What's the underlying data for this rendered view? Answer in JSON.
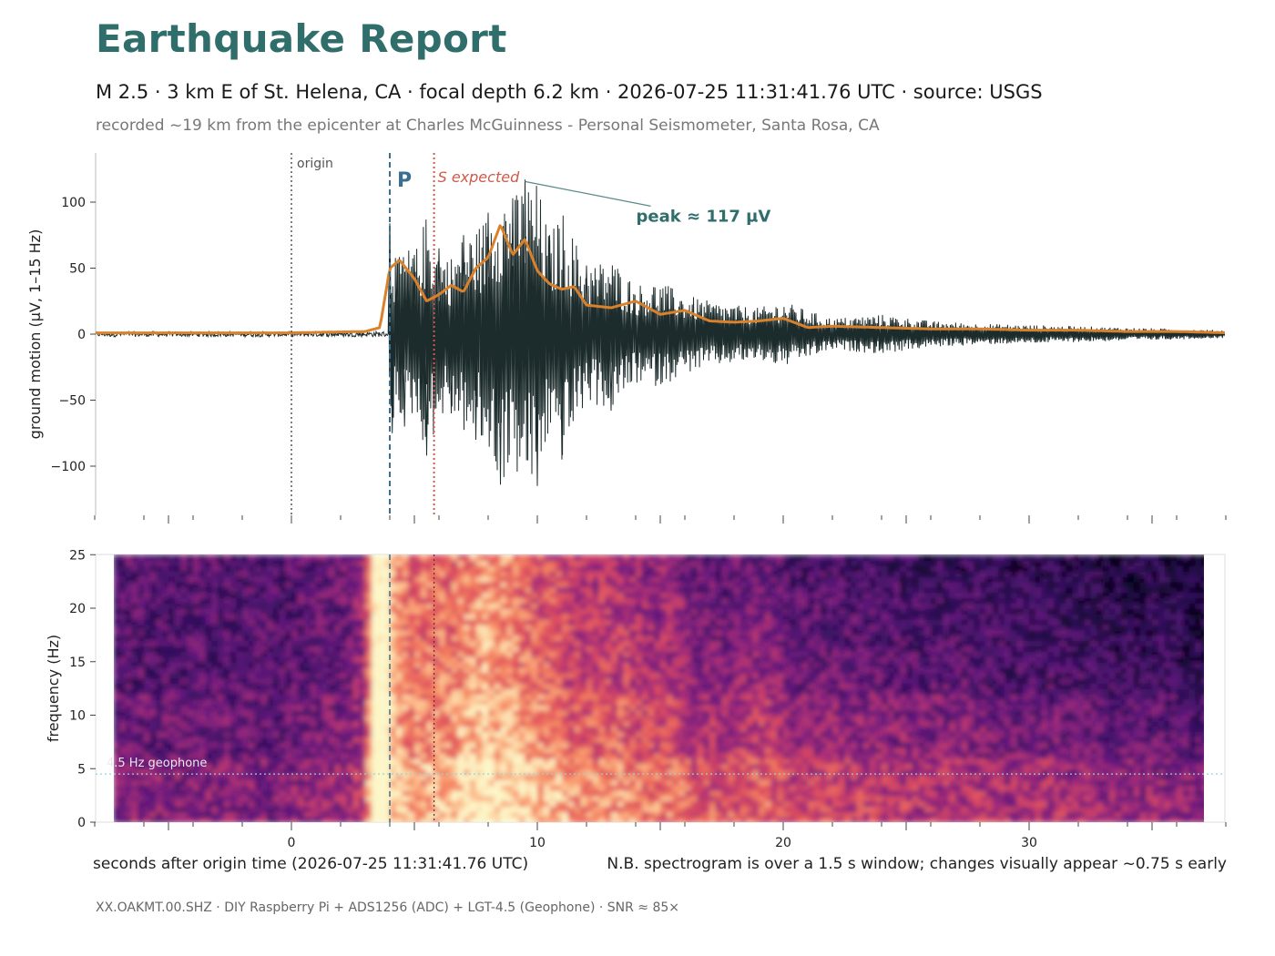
{
  "header": {
    "title": "Earthquake Report",
    "subtitle": "M 2.5  ·  3 km E of St. Helena, CA  ·  focal depth 6.2 km  ·  2026-07-25 11:31:41.76 UTC  ·  source: USGS",
    "recorded": "recorded ~19 km from the epicenter at Charles McGuinness - Personal Seismometer, Santa Rosa, CA"
  },
  "footer": {
    "text": "XX.OAKMT.00.SHZ  ·  DIY Raspberry Pi + ADS1256 (ADC) + LGT-4.5 (Geophone)  ·  SNR ≈ 85×"
  },
  "colors": {
    "title": "#2f6e6a",
    "trace": "#1c2b2b",
    "envelope": "#d9822b",
    "p_line": "#3a6f8f",
    "s_line": "#d05a4a",
    "origin_line": "#555555",
    "peak_label": "#2f6e6a",
    "geophone_line": "#8fd3e0"
  },
  "chart_data": [
    {
      "type": "line",
      "xlabel": "seconds after origin time  (2026-07-25 11:31:41.76 UTC)",
      "ylabel": "ground motion  (µV, 1–15 Hz)",
      "xlim": [
        -8,
        38
      ],
      "ylim": [
        -138,
        138
      ],
      "x_ticks": [
        0,
        10,
        20,
        30
      ],
      "y_ticks": [
        -100,
        -50,
        0,
        50,
        100
      ],
      "grid": false,
      "markers": [
        {
          "name": "origin",
          "label": "origin",
          "x": 0
        },
        {
          "name": "p-arrival",
          "label": "P",
          "x": 4.0
        },
        {
          "name": "s-expected",
          "label": "S expected",
          "x": 5.8
        }
      ],
      "peak": {
        "label": "peak ≈ 117 µV",
        "x": 9.5,
        "y": 117
      },
      "series": [
        {
          "role": "trace",
          "x": [
            -8,
            -7,
            -6,
            -5,
            -4,
            -3,
            -2,
            -1,
            0,
            1,
            2,
            3,
            3.5,
            4.0,
            4.1,
            4.3,
            4.6,
            5.0,
            5.5,
            6.0,
            6.5,
            7.0,
            7.5,
            8.0,
            8.5,
            9.0,
            9.5,
            10.0,
            10.5,
            11.0,
            12.0,
            13.0,
            14.0,
            15.0,
            16.0,
            17.0,
            18.0,
            19.0,
            20.0,
            21.0,
            22.0,
            24.0,
            26.0,
            28.0,
            30.0,
            32.0,
            34.0,
            36.0,
            38.0
          ],
          "y": [
            1,
            -1,
            1,
            -1,
            1,
            -2,
            1,
            -1,
            1,
            -1,
            2,
            -2,
            2,
            84,
            -75,
            55,
            -70,
            60,
            -92,
            65,
            -60,
            75,
            -80,
            92,
            -114,
            103,
            117,
            -115,
            75,
            -95,
            52,
            -58,
            38,
            -40,
            30,
            -25,
            22,
            -20,
            25,
            -18,
            12,
            -15,
            10,
            -8,
            7,
            -6,
            5,
            -4,
            3
          ]
        },
        {
          "role": "envelope",
          "x": [
            -8,
            -4,
            0,
            3,
            3.6,
            4.0,
            4.4,
            5.0,
            5.5,
            6.0,
            6.5,
            7.0,
            7.5,
            8.0,
            8.5,
            9.0,
            9.5,
            10.0,
            10.5,
            11.0,
            11.5,
            12.0,
            13.0,
            14.0,
            15.0,
            16.0,
            17.0,
            18.0,
            19.0,
            20.0,
            21.0,
            22.0,
            24.0,
            26.0,
            28.0,
            30.0,
            32.0,
            34.0,
            36.0,
            38.0
          ],
          "y": [
            1,
            1,
            1,
            2,
            5,
            50,
            56,
            42,
            25,
            30,
            37,
            32,
            50,
            58,
            83,
            60,
            72,
            48,
            38,
            34,
            36,
            22,
            20,
            25,
            15,
            18,
            10,
            9,
            10,
            12,
            5,
            6,
            5,
            4,
            4,
            3,
            3,
            2,
            2,
            1
          ]
        }
      ]
    },
    {
      "type": "heatmap",
      "ylabel": "frequency (Hz)",
      "xlim": [
        -8,
        38
      ],
      "ylim": [
        0,
        25
      ],
      "x_ticks": [
        0,
        10,
        20,
        30
      ],
      "y_ticks": [
        0,
        5,
        10,
        15,
        20,
        25
      ],
      "colormap": "magma",
      "geophone_line": {
        "label": "4.5 Hz geophone",
        "y": 4.5
      },
      "note": "N.B. spectrogram is over a 1.5 s window; changes visually appear ~0.75 s early"
    }
  ]
}
